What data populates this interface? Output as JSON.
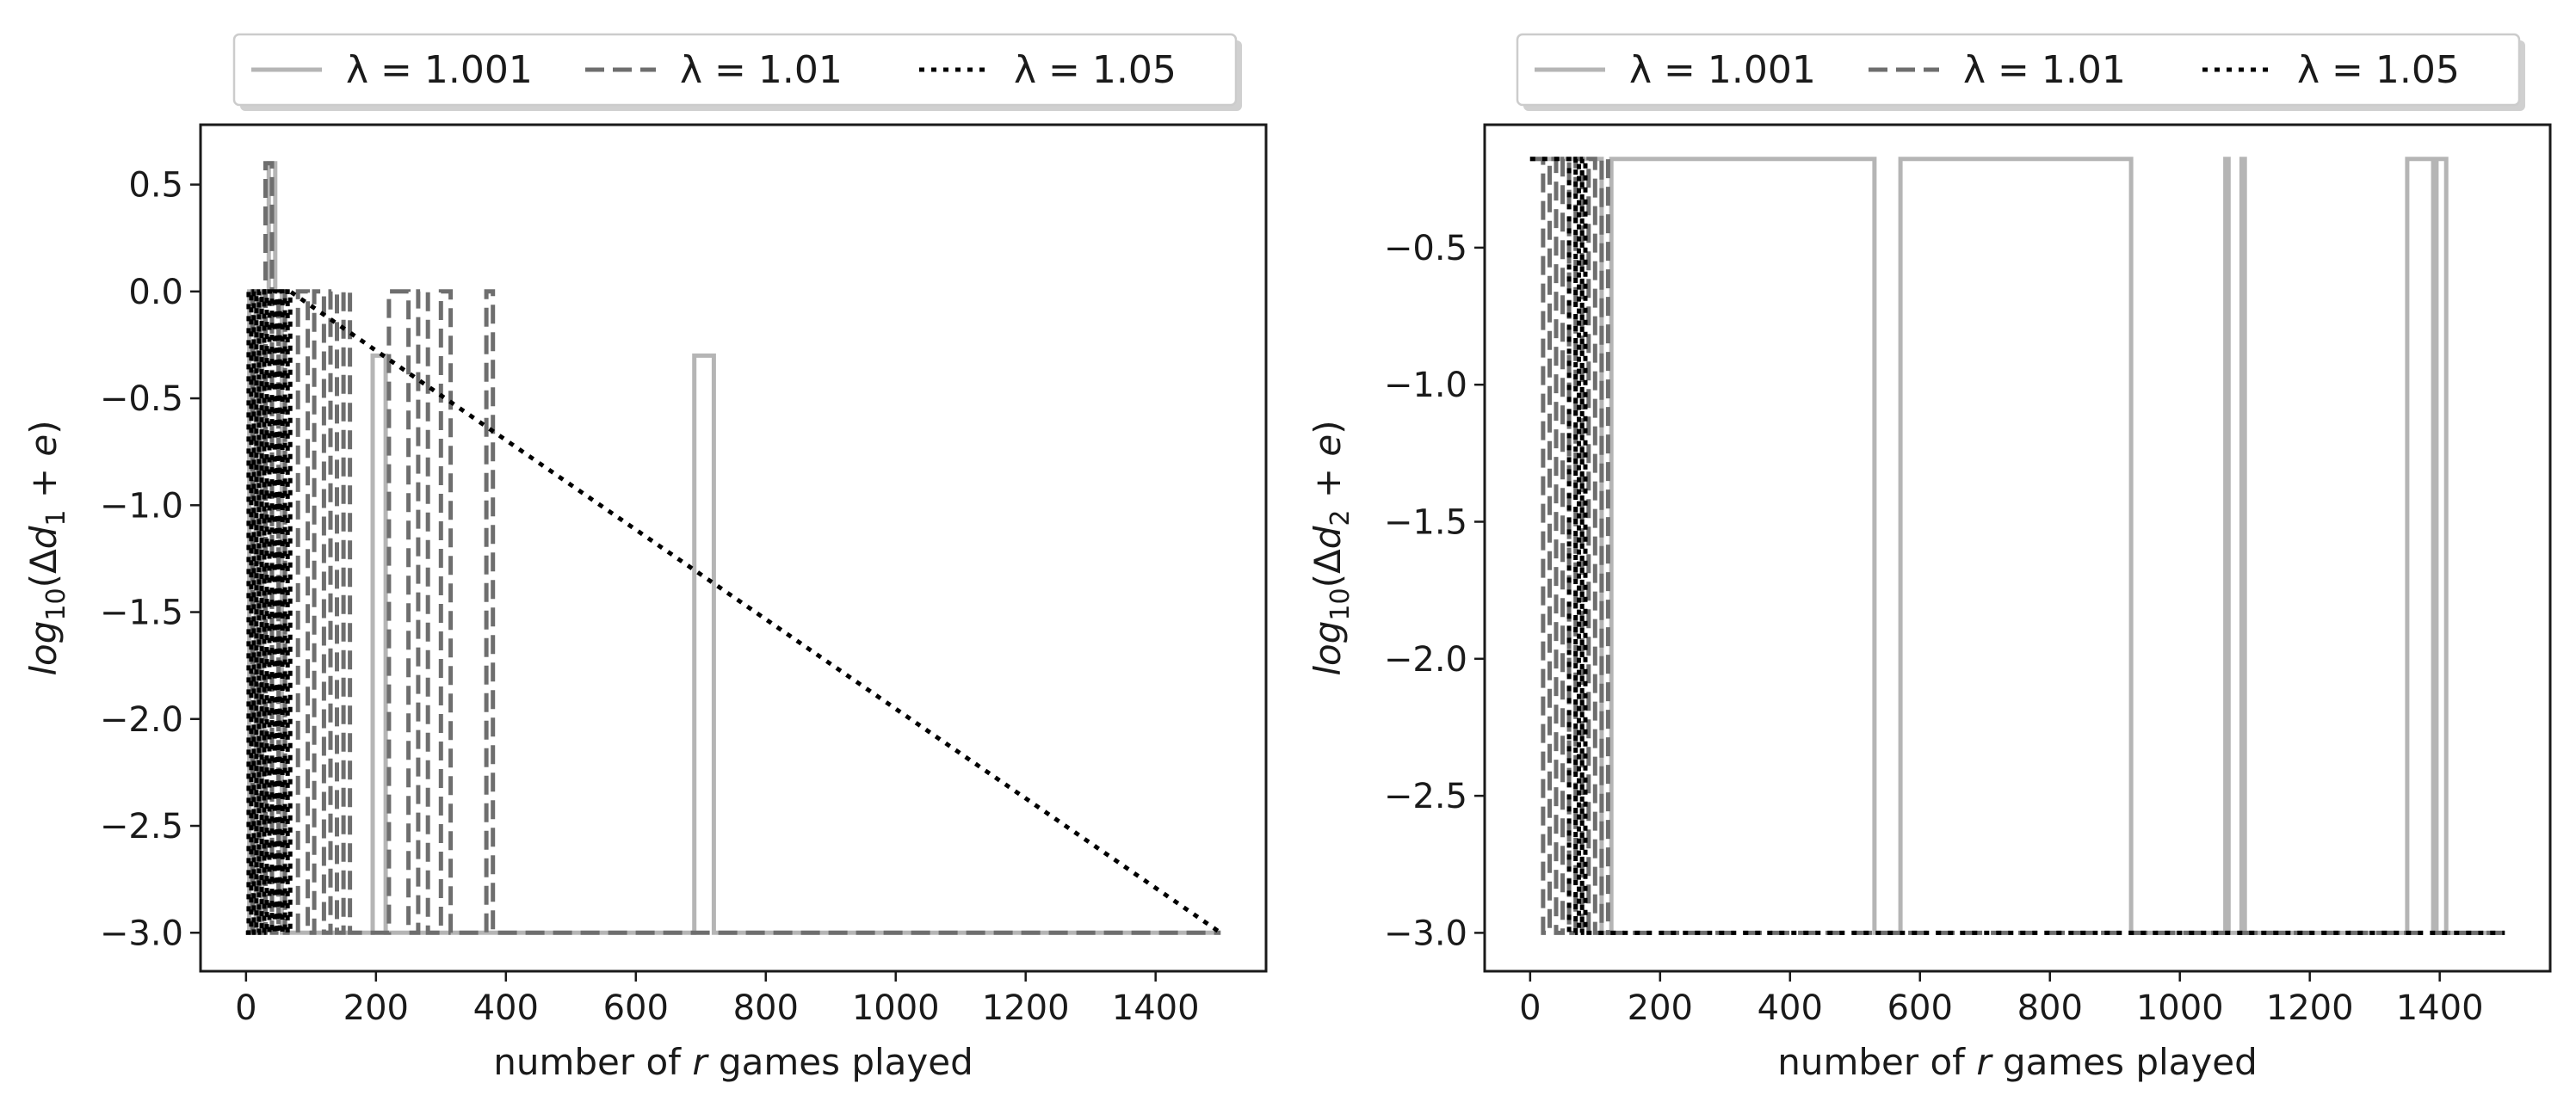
{
  "figure": {
    "background": "#ffffff",
    "axis_color": "#1a1a1a"
  },
  "chart_data": [
    {
      "type": "line",
      "panel": "left",
      "xlabel_main": "number of ",
      "xlabel_var": "r",
      "xlabel_rest": " games played",
      "ylabel_fn": "log",
      "ylabel_base": "10",
      "ylabel_arg_pre": "(Δ",
      "ylabel_var": "d",
      "ylabel_sub": "1",
      "ylabel_arg_post": " + ",
      "ylabel_e": "e",
      "ylabel_close": ")",
      "xlim": [
        -70,
        1570
      ],
      "ylim": [
        -3.18,
        0.78
      ],
      "xticks": [
        0,
        200,
        400,
        600,
        800,
        1000,
        1200,
        1400
      ],
      "xtick_labels": [
        "0",
        "200",
        "400",
        "600",
        "800",
        "1000",
        "1200",
        "1400"
      ],
      "yticks": [
        0.5,
        0.0,
        -0.5,
        -1.0,
        -1.5,
        -2.0,
        -2.5,
        -3.0
      ],
      "ytick_labels": [
        "0.5",
        "0.0",
        "−0.5",
        "−1.0",
        "−1.5",
        "−2.0",
        "−2.5",
        "−3.0"
      ],
      "legend_position": "above",
      "series": [
        {
          "name": "λ = 1.001",
          "style": "solid",
          "color": "#b5b5b5",
          "x": [
            0,
            5,
            5,
            15,
            15,
            25,
            25,
            35,
            35,
            45,
            45,
            55,
            55,
            195,
            195,
            215,
            215,
            690,
            690,
            720,
            720,
            1500
          ],
          "y": [
            -3.0,
            -3.0,
            0.0,
            0.0,
            -3.0,
            -3.0,
            0.0,
            0.0,
            0.6,
            0.6,
            0.0,
            0.0,
            -3.0,
            -3.0,
            -0.3,
            -0.3,
            -3.0,
            -3.0,
            -0.3,
            -0.3,
            -3.0,
            -3.0
          ]
        },
        {
          "name": "λ = 1.01",
          "style": "dashed",
          "color": "#6e6e6e",
          "x": [
            0,
            10,
            10,
            20,
            20,
            30,
            30,
            40,
            40,
            50,
            50,
            60,
            60,
            80,
            80,
            95,
            95,
            105,
            105,
            120,
            120,
            130,
            130,
            140,
            140,
            150,
            150,
            160,
            160,
            220,
            220,
            250,
            250,
            265,
            265,
            280,
            280,
            300,
            300,
            315,
            315,
            370,
            370,
            380,
            380,
            1500
          ],
          "y": [
            -3.0,
            -3.0,
            0.0,
            0.0,
            -3.0,
            -3.0,
            0.6,
            0.6,
            -3.0,
            -3.0,
            0.0,
            0.0,
            -3.0,
            -3.0,
            0.0,
            0.0,
            -3.0,
            -3.0,
            0.0,
            0.0,
            -3.0,
            -3.0,
            0.0,
            0.0,
            -3.0,
            -3.0,
            0.0,
            0.0,
            -3.0,
            -3.0,
            0.0,
            0.0,
            -3.0,
            -3.0,
            0.0,
            0.0,
            -3.0,
            -3.0,
            0.0,
            0.0,
            -3.0,
            -3.0,
            0.0,
            0.0,
            -3.0,
            -3.0
          ]
        },
        {
          "name": "λ = 1.05",
          "style": "dotted",
          "color": "#000000",
          "x": [
            0,
            4,
            4,
            8,
            8,
            12,
            12,
            16,
            16,
            20,
            20,
            24,
            24,
            28,
            28,
            32,
            32,
            36,
            36,
            40,
            40,
            44,
            44,
            48,
            48,
            52,
            52,
            56,
            56,
            60,
            60,
            64,
            64,
            68,
            68,
            1500
          ],
          "y": [
            -3.0,
            -3.0,
            0.0,
            0.0,
            -3.0,
            -3.0,
            0.0,
            0.0,
            -3.0,
            -3.0,
            0.0,
            0.0,
            -3.0,
            -3.0,
            0.0,
            0.0,
            -3.0,
            -3.0,
            0.0,
            0.0,
            -3.0,
            -3.0,
            0.0,
            0.0,
            -3.0,
            -3.0,
            0.0,
            0.0,
            -3.0,
            -3.0,
            0.0,
            0.0,
            -3.0,
            -3.0,
            0.0,
            -3.0
          ]
        }
      ]
    },
    {
      "type": "line",
      "panel": "right",
      "xlabel_main": "number of ",
      "xlabel_var": "r",
      "xlabel_rest": " games played",
      "ylabel_fn": "log",
      "ylabel_base": "10",
      "ylabel_arg_pre": "(Δ",
      "ylabel_var": "d",
      "ylabel_sub": "2",
      "ylabel_arg_post": " + ",
      "ylabel_e": "e",
      "ylabel_close": ")",
      "xlim": [
        -70,
        1570
      ],
      "ylim": [
        -3.14,
        -0.0515
      ],
      "xticks": [
        0,
        200,
        400,
        600,
        800,
        1000,
        1200,
        1400
      ],
      "xtick_labels": [
        "0",
        "200",
        "400",
        "600",
        "800",
        "1000",
        "1200",
        "1400"
      ],
      "yticks": [
        -0.5,
        -1.0,
        -1.5,
        -2.0,
        -2.5,
        -3.0
      ],
      "ytick_labels": [
        "−0.5",
        "−1.0",
        "−1.5",
        "−2.0",
        "−2.5",
        "−3.0"
      ],
      "legend_position": "above",
      "series": [
        {
          "name": "λ = 1.001",
          "style": "solid",
          "color": "#b5b5b5",
          "x": [
            0,
            110,
            110,
            125,
            125,
            530,
            530,
            570,
            570,
            925,
            925,
            1070,
            1070,
            1075,
            1075,
            1095,
            1095,
            1100,
            1100,
            1350,
            1350,
            1390,
            1390,
            1395,
            1395,
            1410,
            1410,
            1500
          ],
          "y": [
            -0.176,
            -0.176,
            -3.0,
            -3.0,
            -0.176,
            -0.176,
            -3.0,
            -3.0,
            -0.176,
            -0.176,
            -3.0,
            -3.0,
            -0.176,
            -0.176,
            -3.0,
            -3.0,
            -0.176,
            -0.176,
            -3.0,
            -3.0,
            -0.176,
            -0.176,
            -3.0,
            -3.0,
            -0.176,
            -0.176,
            -3.0,
            -3.0
          ]
        },
        {
          "name": "λ = 1.01",
          "style": "dashed",
          "color": "#6e6e6e",
          "x": [
            0,
            20,
            20,
            30,
            30,
            40,
            40,
            50,
            50,
            60,
            60,
            70,
            70,
            80,
            80,
            90,
            90,
            100,
            100,
            110,
            110,
            120,
            120,
            1500
          ],
          "y": [
            -0.176,
            -0.176,
            -3.0,
            -3.0,
            -0.176,
            -0.176,
            -3.0,
            -3.0,
            -0.176,
            -0.176,
            -3.0,
            -3.0,
            -0.176,
            -0.176,
            -3.0,
            -3.0,
            -0.176,
            -0.176,
            -3.0,
            -3.0,
            -0.176,
            -0.176,
            -3.0,
            -3.0
          ]
        },
        {
          "name": "λ = 1.05",
          "style": "dotted",
          "color": "#000000",
          "x": [
            0,
            60,
            60,
            70,
            70,
            75,
            75,
            80,
            80,
            85,
            85,
            90,
            90,
            1500
          ],
          "y": [
            -0.176,
            -0.176,
            -3.0,
            -3.0,
            -0.176,
            -0.176,
            -3.0,
            -3.0,
            -0.176,
            -0.176,
            -3.0,
            -3.0,
            -3.0,
            -3.0
          ]
        }
      ]
    }
  ]
}
